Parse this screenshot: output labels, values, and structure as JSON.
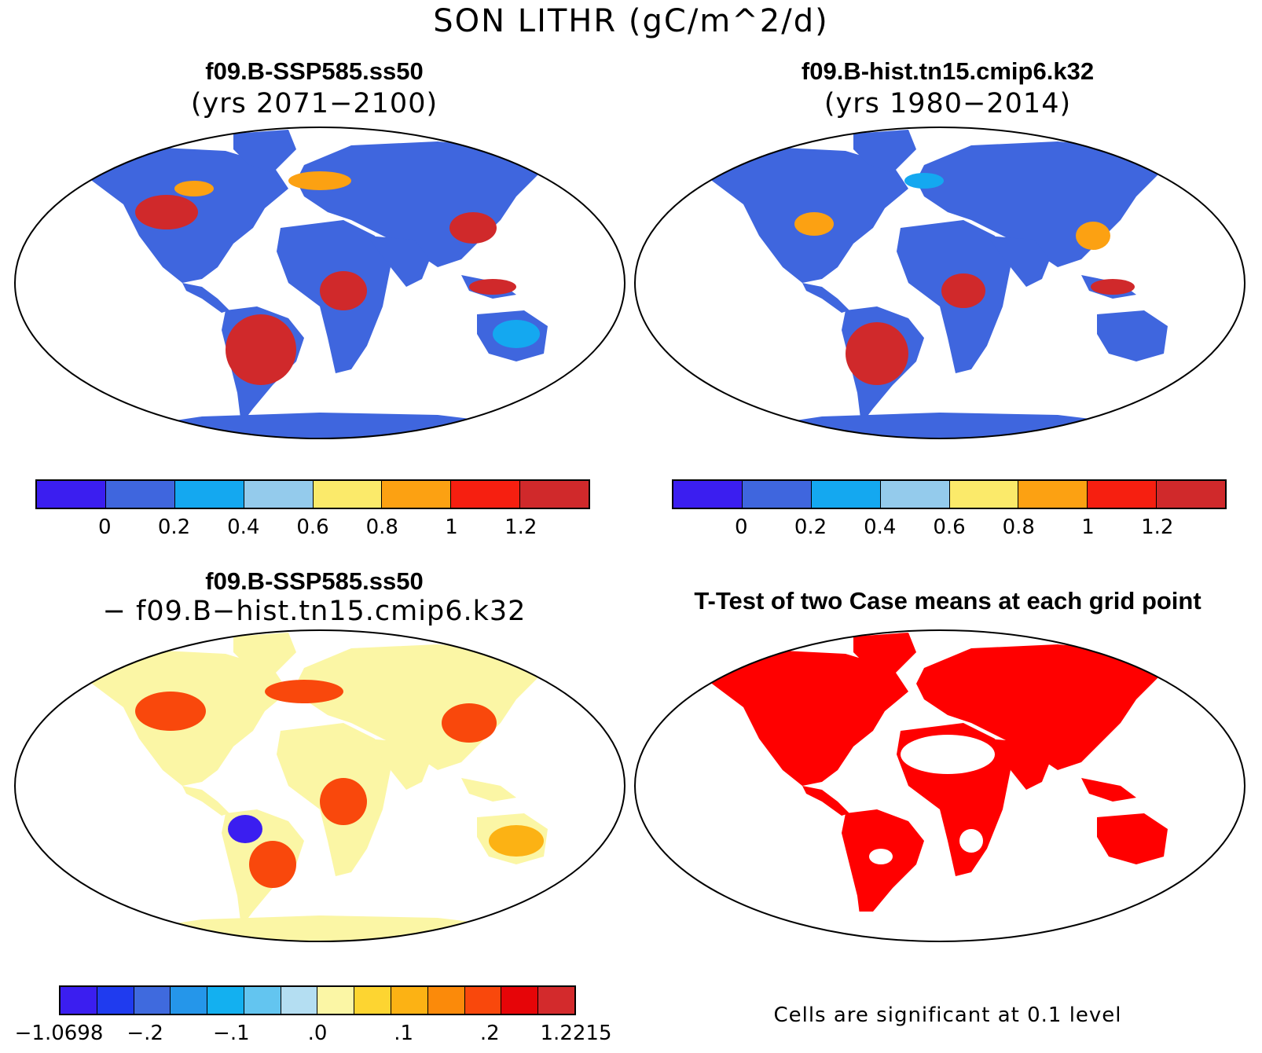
{
  "figure": {
    "title": "SON LITHR (gC/m^2/d)"
  },
  "panels": {
    "top_left": {
      "title": "f09.B-SSP585.ss50",
      "subtitle": "(yrs 2071−2100)"
    },
    "top_right": {
      "title": "f09.B-hist.tn15.cmip6.k32",
      "subtitle": "(yrs 1980−2014)"
    },
    "bottom_left": {
      "title": "f09.B-SSP585.ss50",
      "subtitle": "− f09.B−hist.tn15.cmip6.k32"
    },
    "bottom_right": {
      "title": "T-Test of two Case means at each grid point",
      "footnote": "Cells are significant at 0.1 level"
    }
  },
  "colorbars": {
    "field": {
      "colors": [
        "#3b1ef0",
        "#3f66de",
        "#14a8f0",
        "#94cbec",
        "#fbea6a",
        "#fca112",
        "#f61f10",
        "#d0292b"
      ],
      "ticks": [
        "0",
        "0.2",
        "0.4",
        "0.6",
        "0.8",
        "1",
        "1.2"
      ]
    },
    "difference": {
      "colors": [
        "#3b1ef0",
        "#1f3bef",
        "#3f6ade",
        "#2596ea",
        "#13b0f0",
        "#63c5f0",
        "#b4def2",
        "#fbf6a5",
        "#fdd531",
        "#fcb214",
        "#fb8a0a",
        "#f9480c",
        "#e60508",
        "#d32a2c"
      ],
      "ticks": [
        "−1.0698",
        "−.2",
        "−.1",
        ".0",
        ".1",
        ".2",
        "1.2215"
      ]
    }
  },
  "map_colors": {
    "land_low": "#3f66de",
    "field_high": "#d0292b",
    "field_mid": "#fca112",
    "field_sky": "#14a8f0",
    "diff_base": "#fbf6a5",
    "diff_high": "#f9480c",
    "diff_neg": "#3b1ef0",
    "significant": "#ff0000",
    "antarctica_field": "#3f66de",
    "antarctica_diff": "#fbf6a5"
  }
}
